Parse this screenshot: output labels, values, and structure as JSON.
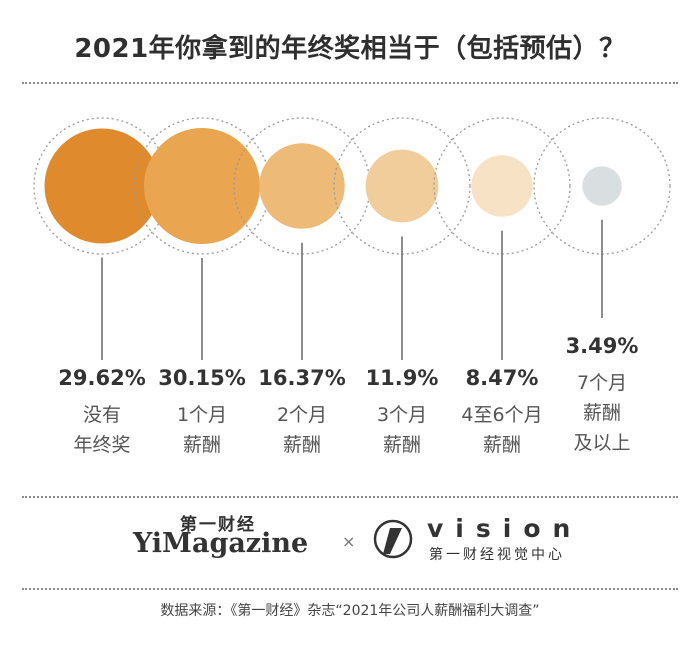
{
  "chart_data": {
    "type": "bubble",
    "title": "2021年你拿到的年终奖相当于（包括预估）？",
    "categories": [
      {
        "lines": [
          "没有",
          "年终奖"
        ],
        "value": 29.62,
        "value_label": "29.62%",
        "color": "#E08A2E"
      },
      {
        "lines": [
          "1个月",
          "薪酬"
        ],
        "value": 30.15,
        "value_label": "30.15%",
        "color": "#E9A550"
      },
      {
        "lines": [
          "2个月",
          "薪酬"
        ],
        "value": 16.37,
        "value_label": "16.37%",
        "color": "#EDBA77"
      },
      {
        "lines": [
          "3个月",
          "薪酬"
        ],
        "value": 11.9,
        "value_label": "11.9%",
        "color": "#F2CD9C"
      },
      {
        "lines": [
          "4至6个月",
          "薪酬"
        ],
        "value": 8.47,
        "value_label": "8.47%",
        "color": "#F7E2C5"
      },
      {
        "lines": [
          "7个月",
          "薪酬",
          "及以上"
        ],
        "value": 3.49,
        "value_label": "3.49%",
        "color": "#D9DFE0"
      }
    ],
    "unit": "%"
  },
  "brand": {
    "cn": "第一财经",
    "en": "YiMagazine",
    "separator": "×",
    "vision": "vision",
    "vision_cn": "第一财经视觉中心"
  },
  "source": "数据来源：《第一财经》杂志“2021年公司人薪酬福利大调查”"
}
